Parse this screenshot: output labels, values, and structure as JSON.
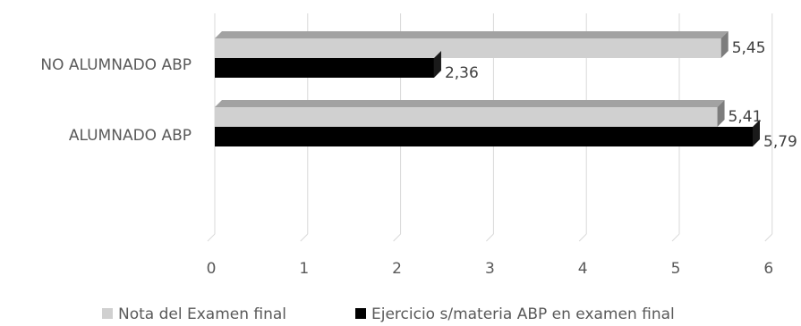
{
  "chart_data": {
    "type": "bar",
    "orientation": "horizontal",
    "style": "3d",
    "categories": [
      "NO ALUMNADO ABP",
      "ALUMNADO ABP"
    ],
    "series": [
      {
        "name": "Nota del Examen final",
        "values": [
          5.45,
          5.41
        ],
        "data_labels": [
          "5,45",
          "5,41"
        ],
        "color": "#d0d0d0"
      },
      {
        "name": "Ejercicio s/materia ABP en examen final",
        "values": [
          2.36,
          5.79
        ],
        "data_labels": [
          "2,36",
          "5,79"
        ],
        "color": "#000000"
      }
    ],
    "xlim": [
      0,
      6
    ],
    "x_ticks": [
      "0",
      "1",
      "2",
      "3",
      "4",
      "5",
      "6"
    ],
    "title": "",
    "xlabel": "",
    "ylabel": "",
    "grid": true,
    "legend_position": "bottom"
  }
}
